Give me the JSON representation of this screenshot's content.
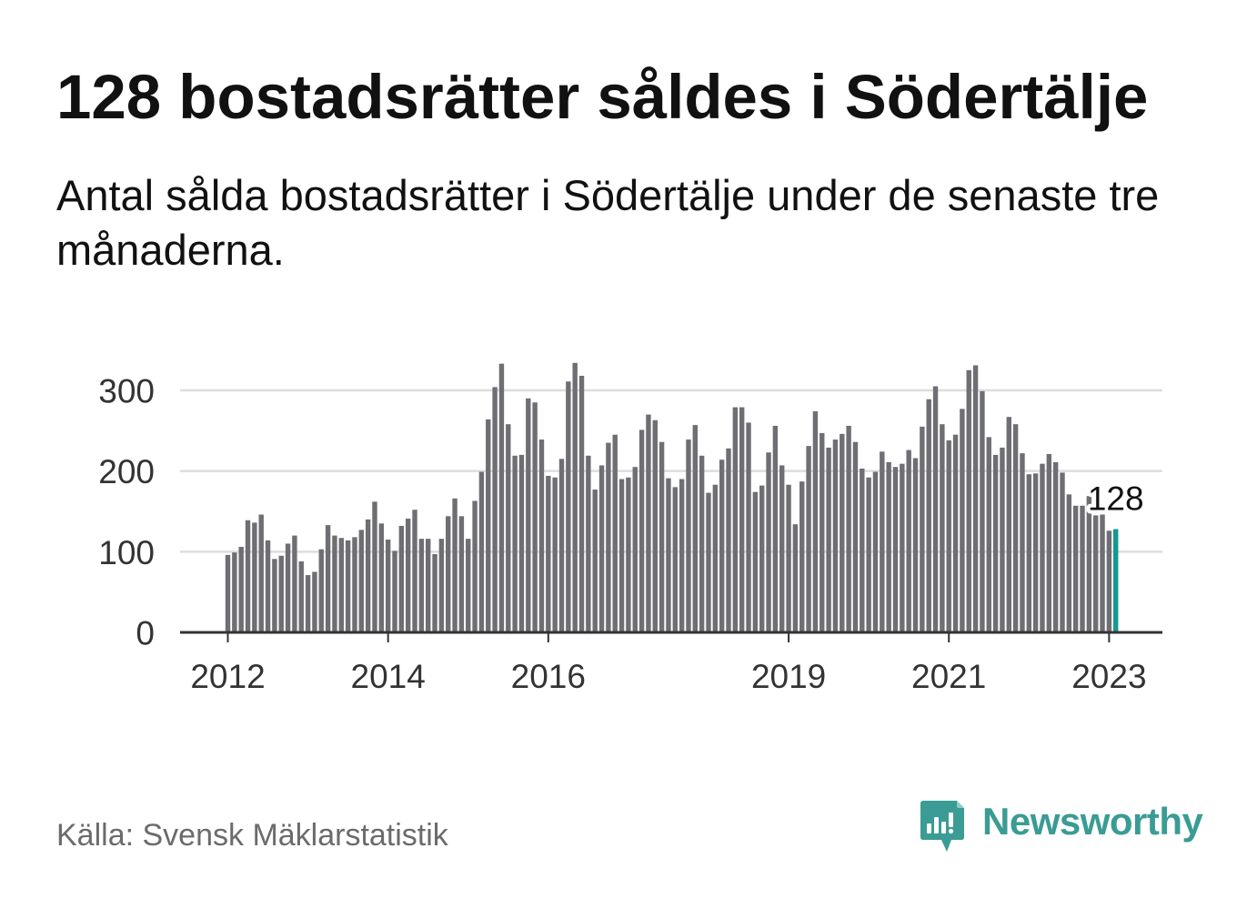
{
  "chart_data": {
    "type": "bar",
    "title": "128 bostadsrätter såldes i Södertälje",
    "subtitle": "Antal sålda bostadsrätter i Södertälje under de senaste tre månaderna.",
    "source": "Källa: Svensk Mäklarstatistik",
    "x": [
      "2012-01",
      "2012-02",
      "2012-03",
      "2012-04",
      "2012-05",
      "2012-06",
      "2012-07",
      "2012-08",
      "2012-09",
      "2012-10",
      "2012-11",
      "2012-12",
      "2013-01",
      "2013-02",
      "2013-03",
      "2013-04",
      "2013-05",
      "2013-06",
      "2013-07",
      "2013-08",
      "2013-09",
      "2013-10",
      "2013-11",
      "2013-12",
      "2014-01",
      "2014-02",
      "2014-03",
      "2014-04",
      "2014-05",
      "2014-06",
      "2014-07",
      "2014-08",
      "2014-09",
      "2014-10",
      "2014-11",
      "2014-12",
      "2015-01",
      "2015-02",
      "2015-03",
      "2015-04",
      "2015-05",
      "2015-06",
      "2015-07",
      "2015-08",
      "2015-09",
      "2015-10",
      "2015-11",
      "2015-12",
      "2016-01",
      "2016-02",
      "2016-03",
      "2016-04",
      "2016-05",
      "2016-06",
      "2016-07",
      "2016-08",
      "2016-09",
      "2016-10",
      "2016-11",
      "2016-12",
      "2017-01",
      "2017-02",
      "2017-03",
      "2017-04",
      "2017-05",
      "2017-06",
      "2017-07",
      "2017-08",
      "2017-09",
      "2017-10",
      "2017-11",
      "2017-12",
      "2018-01",
      "2018-02",
      "2018-03",
      "2018-04",
      "2018-05",
      "2018-06",
      "2018-07",
      "2018-08",
      "2018-09",
      "2018-10",
      "2018-11",
      "2018-12",
      "2019-01",
      "2019-02",
      "2019-03",
      "2019-04",
      "2019-05",
      "2019-06",
      "2019-07",
      "2019-08",
      "2019-09",
      "2019-10",
      "2019-11",
      "2019-12",
      "2020-01",
      "2020-02",
      "2020-03",
      "2020-04",
      "2020-05",
      "2020-06",
      "2020-07",
      "2020-08",
      "2020-09",
      "2020-10",
      "2020-11",
      "2020-12",
      "2021-01",
      "2021-02",
      "2021-03",
      "2021-04",
      "2021-05",
      "2021-06",
      "2021-07",
      "2021-08",
      "2021-09",
      "2021-10",
      "2021-11",
      "2021-12",
      "2022-01",
      "2022-02",
      "2022-03",
      "2022-04",
      "2022-05",
      "2022-06",
      "2022-07",
      "2022-08",
      "2022-09",
      "2022-10",
      "2022-11",
      "2022-12",
      "2023-01",
      "2023-02"
    ],
    "values": [
      96,
      99,
      106,
      139,
      136,
      146,
      114,
      91,
      95,
      110,
      120,
      88,
      71,
      75,
      103,
      133,
      120,
      117,
      114,
      118,
      127,
      140,
      162,
      135,
      115,
      101,
      132,
      141,
      152,
      116,
      116,
      97,
      116,
      144,
      166,
      144,
      116,
      163,
      199,
      264,
      304,
      333,
      258,
      219,
      220,
      290,
      285,
      239,
      194,
      192,
      215,
      311,
      334,
      318,
      219,
      177,
      207,
      235,
      245,
      190,
      192,
      205,
      251,
      270,
      263,
      236,
      191,
      180,
      190,
      239,
      257,
      219,
      173,
      183,
      214,
      228,
      279,
      279,
      260,
      174,
      182,
      223,
      256,
      207,
      183,
      134,
      187,
      231,
      274,
      247,
      229,
      239,
      246,
      256,
      236,
      203,
      192,
      199,
      224,
      211,
      205,
      209,
      226,
      216,
      255,
      289,
      305,
      258,
      238,
      245,
      277,
      325,
      331,
      299,
      242,
      220,
      229,
      267,
      258,
      222,
      196,
      197,
      209,
      221,
      211,
      198,
      171,
      157,
      157,
      169,
      145,
      146,
      126,
      128
    ],
    "x_ticks": [
      {
        "x": "2012-01",
        "label": "2012"
      },
      {
        "x": "2014-01",
        "label": "2014"
      },
      {
        "x": "2016-01",
        "label": "2016"
      },
      {
        "x": "2019-01",
        "label": "2019"
      },
      {
        "x": "2021-01",
        "label": "2021"
      },
      {
        "x": "2023-01",
        "label": "2023"
      }
    ],
    "y_ticks": [
      0,
      100,
      200,
      300
    ],
    "ylim": [
      0,
      340
    ],
    "grid": "horizontal",
    "legend": "none",
    "highlight_x": "2023-02",
    "annotation": {
      "x": "2023-02",
      "label": "128"
    }
  },
  "logo": {
    "text": "Newsworthy",
    "icon": "newsworthy-chart-bubble-icon"
  },
  "colors": {
    "bar": "#6e6e73",
    "highlight": "#13998f",
    "grid": "#dddddd",
    "axis": "#333333",
    "label": "#333333",
    "title": "#111111",
    "source": "#6b6b6b",
    "brand": "#3a9c94"
  }
}
